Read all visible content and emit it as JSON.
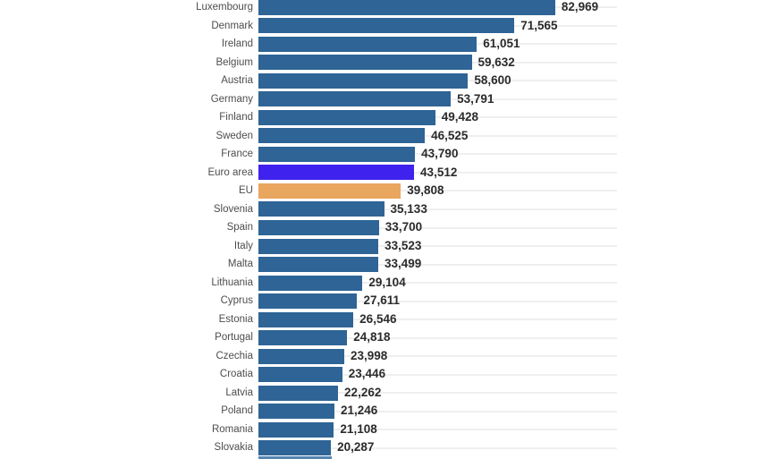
{
  "chart_data": {
    "type": "bar",
    "orientation": "horizontal",
    "title": "",
    "xlabel": "",
    "ylabel": "",
    "xlim": [
      0,
      100000
    ],
    "grid": true,
    "legend": false,
    "categories": [
      "Luxembourg",
      "Denmark",
      "Ireland",
      "Belgium",
      "Austria",
      "Germany",
      "Finland",
      "Sweden",
      "France",
      "Euro area",
      "EU",
      "Slovenia",
      "Spain",
      "Italy",
      "Malta",
      "Lithuania",
      "Cyprus",
      "Estonia",
      "Portugal",
      "Czechia",
      "Croatia",
      "Latvia",
      "Poland",
      "Romania",
      "Slovakia"
    ],
    "values": [
      82969,
      71565,
      61051,
      59632,
      58600,
      53791,
      49428,
      46525,
      43790,
      43512,
      39808,
      35133,
      33700,
      33523,
      33499,
      29104,
      27611,
      26546,
      24818,
      23998,
      23446,
      22262,
      21246,
      21108,
      20287
    ],
    "data_labels": [
      "82,969",
      "71,565",
      "61,051",
      "59,632",
      "58,600",
      "53,791",
      "49,428",
      "46,525",
      "43,790",
      "43,512",
      "39,808",
      "35,133",
      "33,700",
      "33,523",
      "33,499",
      "29,104",
      "27,611",
      "26,546",
      "24,818",
      "23,998",
      "23,446",
      "22,262",
      "21,246",
      "21,108",
      "20,287"
    ],
    "bar_colors": {
      "default": "#2e6496",
      "Euro area": "#3f22ed",
      "EU": "#e9a65f"
    },
    "gridline_color": "#efefef",
    "label_color": "#4d4d4d",
    "value_color": "#2b2b2b",
    "cropped_partial_bar_at_bottom": {
      "approx_value": 20500,
      "color": "#5585b2"
    }
  }
}
